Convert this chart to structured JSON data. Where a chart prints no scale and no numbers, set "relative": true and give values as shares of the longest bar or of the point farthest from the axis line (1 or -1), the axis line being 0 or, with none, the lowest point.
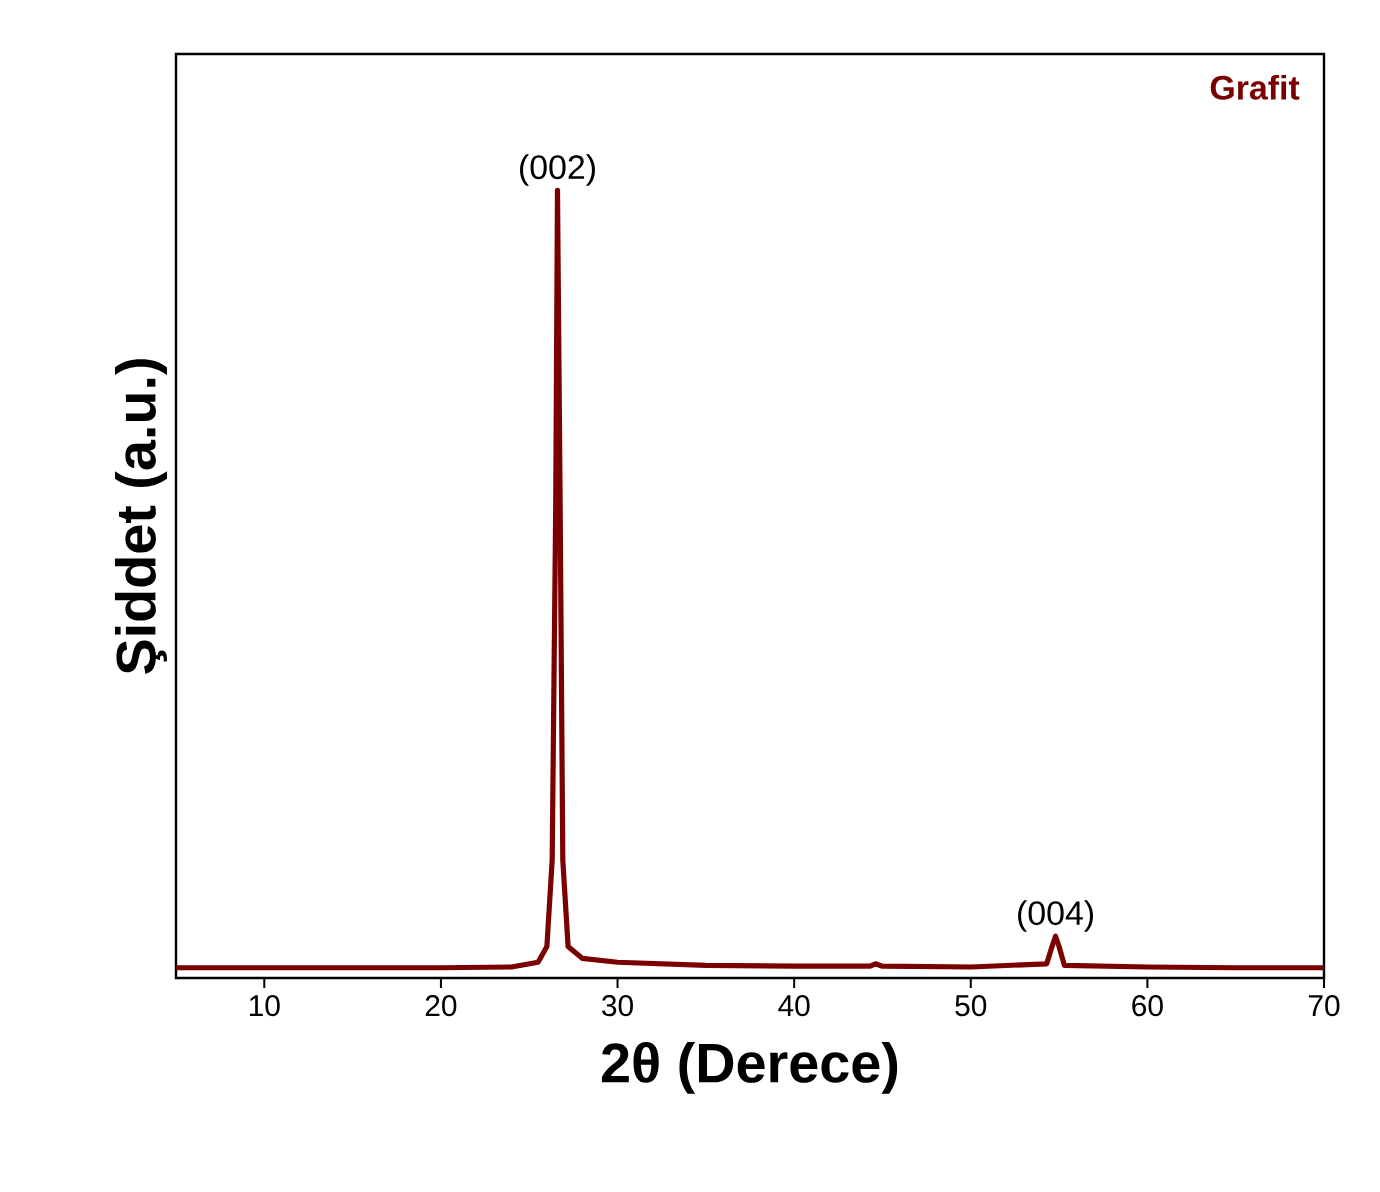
{
  "chart_data": {
    "type": "line",
    "relative": true,
    "xlabel": "2θ (Derece)",
    "ylabel": "Şiddet (a.u.)",
    "xlim": [
      5,
      70
    ],
    "xticks": [
      10,
      20,
      30,
      40,
      50,
      60,
      70
    ],
    "marker": "none",
    "line_style": "solid",
    "grid": false,
    "tick_labels": "x",
    "series": [
      {
        "name": "Grafit",
        "color": "#7b0000",
        "x": [
          5,
          10,
          15,
          20,
          24,
          25.5,
          26,
          26.3,
          26.5,
          26.6,
          26.75,
          26.9,
          27.2,
          28,
          30,
          35,
          40,
          44.3,
          44.6,
          45,
          50,
          54.3,
          54.6,
          54.8,
          55.0,
          55.3,
          60,
          65,
          70
        ],
        "values": [
          0.013,
          0.013,
          0.013,
          0.013,
          0.014,
          0.02,
          0.04,
          0.15,
          0.6,
          1.0,
          0.6,
          0.15,
          0.04,
          0.025,
          0.02,
          0.016,
          0.015,
          0.015,
          0.018,
          0.015,
          0.014,
          0.018,
          0.04,
          0.053,
          0.04,
          0.016,
          0.014,
          0.013,
          0.013
        ]
      }
    ],
    "annotations": [
      {
        "text": "(002)",
        "x": 26.6,
        "y": 1.0
      },
      {
        "text": "(004)",
        "x": 54.8,
        "y": 0.053
      }
    ]
  }
}
